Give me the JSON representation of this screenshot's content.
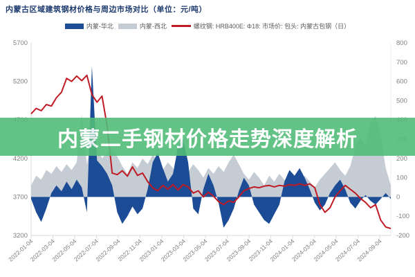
{
  "header": {
    "title": "内蒙古区域建筑钢材价格与周边市场对比（单位：元/吨）",
    "title_color": "#1d3a6e"
  },
  "banner": {
    "text": "内蒙二手钢材价格走势深度解析",
    "background": "#53bd79",
    "opacity": 0.9,
    "text_color": "#ffffff"
  },
  "legend": {
    "items": [
      {
        "label": "内蒙-华北",
        "swatch": "area",
        "color": "#1c4c96"
      },
      {
        "label": "内蒙-西北",
        "swatch": "area",
        "color": "#c5ccd4"
      },
      {
        "label": "螺纹钢: HRB400E: Φ18: 市场价: 包头: 内蒙古包钢（日）",
        "swatch": "line",
        "color": "#bf1a24"
      }
    ]
  },
  "chart_data": {
    "type": "mixed",
    "title": "内蒙古区域建筑钢材价格与周边市场对比（单位：元/吨）",
    "grid": false,
    "legend_position": "top",
    "left_axis": {
      "label": "",
      "min": 3200,
      "max": 5700,
      "ticks": [
        "5700",
        "5200",
        "4700",
        "4200",
        "3700",
        "3200"
      ],
      "tick_values": [
        5700,
        5200,
        4700,
        4200,
        3700,
        3200
      ]
    },
    "right_axis": {
      "label": "",
      "min": -200,
      "max": 800,
      "ticks": [
        "800",
        "700",
        "600",
        "500",
        "400",
        "300",
        "200",
        "100",
        "0",
        "-100",
        "-200"
      ],
      "tick_values": [
        800,
        700,
        600,
        500,
        400,
        300,
        200,
        100,
        0,
        -100,
        -200
      ]
    },
    "x_tick_labels": [
      "2022-01-04",
      "2022-03-04",
      "2022-05-04",
      "2022-07-04",
      "2022-09-04",
      "2022-11-04",
      "2023-01-04",
      "2023-03-04",
      "2023-05-04",
      "2023-07-04",
      "2023-09-04",
      "2023-11-04",
      "2024-01-04",
      "2024-03-04",
      "2024-05-04",
      "2024-07-04",
      "2024-09-04"
    ],
    "series": [
      {
        "name": "内蒙-华北",
        "type": "area",
        "axis": "right",
        "color": "#1c4c96",
        "values": [
          -10,
          -80,
          -130,
          -60,
          20,
          60,
          30,
          80,
          40,
          90,
          50,
          -80,
          680,
          190,
          160,
          120,
          60,
          -80,
          -140,
          -100,
          -50,
          -90,
          -60,
          40,
          180,
          230,
          150,
          80,
          120,
          260,
          300,
          180,
          -60,
          -90,
          40,
          120,
          60,
          -30,
          -160,
          -120,
          -60,
          30,
          100,
          60,
          -40,
          -80,
          -120,
          -140,
          -90,
          -40,
          80,
          140,
          110,
          150,
          100,
          40,
          -30,
          -70,
          -40,
          20,
          60,
          90,
          40,
          -30,
          -60,
          -20,
          10,
          -20,
          -40,
          -10,
          20,
          -10
        ]
      },
      {
        "name": "内蒙-西北",
        "type": "area",
        "axis": "right",
        "color": "#c5ccd4",
        "values": [
          60,
          110,
          90,
          140,
          120,
          160,
          130,
          170,
          140,
          180,
          430,
          170,
          300,
          260,
          200,
          230,
          250,
          210,
          160,
          120,
          180,
          150,
          200,
          170,
          220,
          190,
          140,
          180,
          150,
          110,
          160,
          130,
          170,
          140,
          100,
          150,
          120,
          160,
          130,
          180,
          220,
          170,
          120,
          90,
          130,
          100,
          60,
          110,
          80,
          120,
          90,
          60,
          100,
          70,
          110,
          80,
          50,
          90,
          120,
          150,
          180,
          140,
          110,
          160,
          260,
          310,
          260,
          390,
          420,
          320,
          150,
          60
        ]
      },
      {
        "name": "螺纹钢: HRB400E: Φ18: 市场价: 包头: 内蒙古包钢（日）",
        "type": "line",
        "axis": "left",
        "color": "#bf1a24",
        "values": [
          4780,
          4850,
          4820,
          4900,
          4880,
          4990,
          5060,
          5240,
          5200,
          5270,
          5210,
          5280,
          5030,
          4930,
          5010,
          4620,
          4010,
          3990,
          4040,
          3970,
          4090,
          3980,
          4010,
          3900,
          3820,
          3780,
          3850,
          3800,
          3860,
          3790,
          3860,
          3830,
          3750,
          3780,
          3700,
          3760,
          3710,
          3640,
          3600,
          3650,
          3630,
          3700,
          3780,
          3810,
          3830,
          3820,
          3840,
          3850,
          3830,
          3850,
          3840,
          3860,
          3850,
          3870,
          3850,
          3870,
          3820,
          3600,
          3500,
          3560,
          3700,
          3780,
          3850,
          3800,
          3750,
          3680,
          3630,
          3560,
          3600,
          3400,
          3310,
          3290
        ]
      }
    ],
    "axis_text_color": "#7f7f7f",
    "axis_line_color": "#d9d9d9"
  }
}
